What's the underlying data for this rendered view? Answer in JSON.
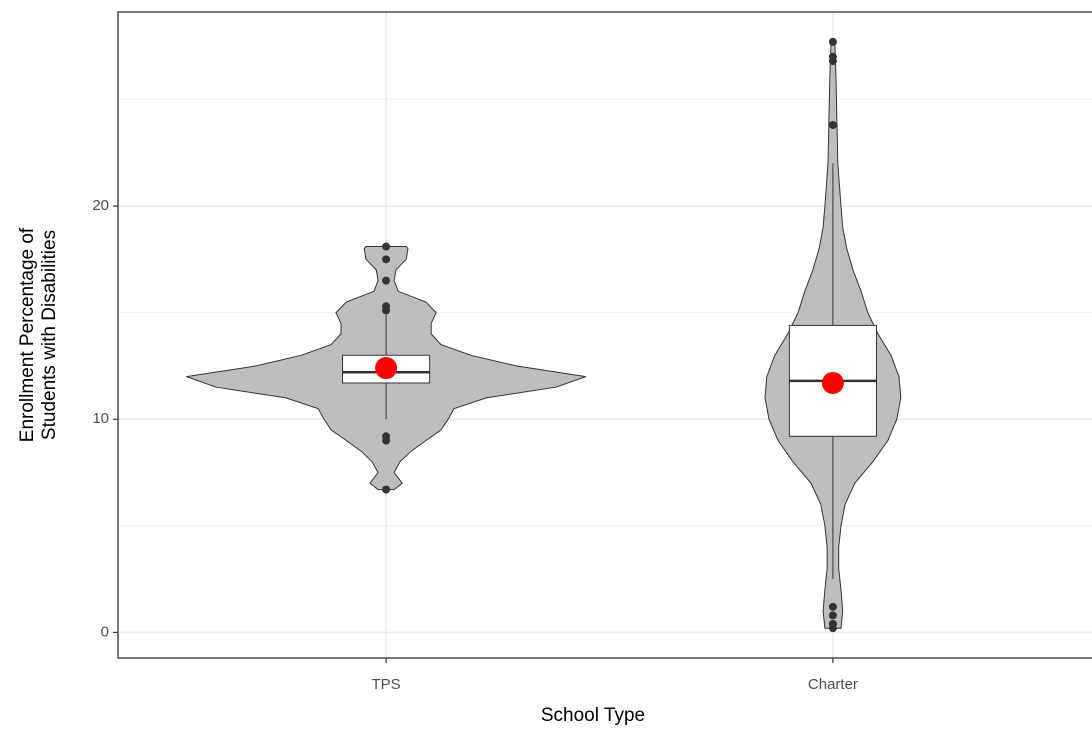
{
  "chart_data": {
    "type": "violin",
    "x_label": "School Type",
    "y_label": [
      "Enrollment Percentage of",
      "Students with Disabilities"
    ],
    "categories": [
      "TPS",
      "Charter"
    ],
    "ylim": [
      -1.2,
      29.1
    ],
    "yticks": [
      0,
      10,
      20
    ],
    "minor_yticks": [
      5,
      15,
      25
    ],
    "grid": true,
    "violin_color": "#bebebe",
    "mean_color": "#ff0000",
    "box_width": 0.195,
    "groups": [
      {
        "violin": {
          "y": [
            6.7,
            7.0,
            7.5,
            8.0,
            8.5,
            9.0,
            9.5,
            10.0,
            10.5,
            11.0,
            11.5,
            12.0,
            12.5,
            13.0,
            13.5,
            14.0,
            14.5,
            15.0,
            15.5,
            16.0,
            16.5,
            17.0,
            17.5,
            18.0,
            18.1
          ],
          "half_width": [
            0.018,
            0.036,
            0.018,
            0.031,
            0.056,
            0.089,
            0.123,
            0.139,
            0.152,
            0.224,
            0.38,
            0.447,
            0.291,
            0.19,
            0.123,
            0.101,
            0.101,
            0.112,
            0.089,
            0.027,
            0.018,
            0.022,
            0.045,
            0.049,
            0.045
          ]
        },
        "box": {
          "whisker_low": 10.0,
          "q1": 11.7,
          "median": 12.2,
          "q3": 13.0,
          "whisker_high": 14.9
        },
        "mean": 12.4,
        "outliers": [
          18.1,
          17.5,
          16.5,
          15.3,
          15.1,
          9.2,
          9.0,
          6.7
        ]
      },
      {
        "violin": {
          "y": [
            0.2,
            1,
            2,
            3,
            4,
            5,
            6,
            7,
            8,
            9,
            10,
            11,
            12,
            13,
            14,
            15,
            16,
            17,
            18,
            19,
            20,
            22,
            24,
            26,
            27.8
          ],
          "half_width": [
            0.018,
            0.022,
            0.018,
            0.013,
            0.013,
            0.018,
            0.027,
            0.049,
            0.089,
            0.123,
            0.143,
            0.152,
            0.148,
            0.13,
            0.101,
            0.078,
            0.063,
            0.045,
            0.031,
            0.022,
            0.018,
            0.011,
            0.009,
            0.007,
            0.004
          ]
        },
        "box": {
          "whisker_low": 2.5,
          "q1": 9.2,
          "median": 11.8,
          "q3": 14.4,
          "whisker_high": 22.0
        },
        "mean": 11.7,
        "outliers": [
          27.7,
          27.0,
          26.8,
          23.8,
          1.2,
          0.8,
          0.4,
          0.2
        ]
      }
    ]
  }
}
